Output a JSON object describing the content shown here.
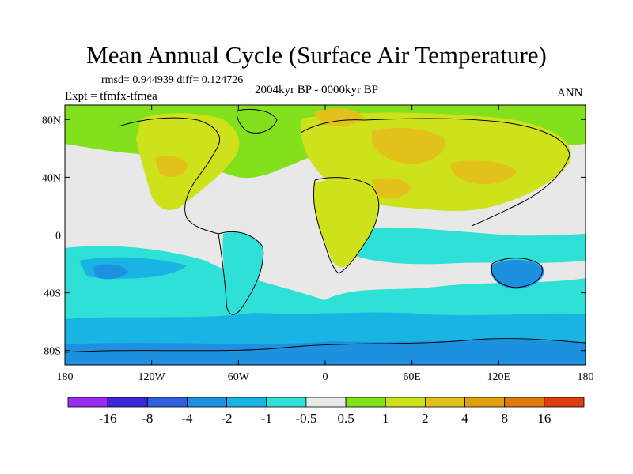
{
  "chart_data": {
    "type": "heatmap",
    "title": "Mean Annual Cycle (Surface Air Temperature)",
    "stats_line": "rmsd= 0.944939  diff= 0.124726",
    "experiment": "Expt = tfmfx-tfmea",
    "period": "2004kyr BP - 0000kyr BP",
    "season": "ANN",
    "xlim": [
      -180,
      180
    ],
    "ylim": [
      -90,
      90
    ],
    "x_ticks": [
      {
        "value": -180,
        "label": "180"
      },
      {
        "value": -120,
        "label": "120W"
      },
      {
        "value": -60,
        "label": "60W"
      },
      {
        "value": 0,
        "label": "0"
      },
      {
        "value": 60,
        "label": "60E"
      },
      {
        "value": 120,
        "label": "120E"
      },
      {
        "value": 180,
        "label": "180"
      }
    ],
    "y_ticks": [
      {
        "value": 80,
        "label": "80N"
      },
      {
        "value": 40,
        "label": "40N"
      },
      {
        "value": 0,
        "label": "0"
      },
      {
        "value": -40,
        "label": "40S"
      },
      {
        "value": -80,
        "label": "80S"
      }
    ],
    "colorbar": {
      "colors": [
        "#9b2bf0",
        "#3a28d8",
        "#2f5fe0",
        "#1e90e0",
        "#1ab4e4",
        "#2ee0d6",
        "#e8e8e8",
        "#82e01c",
        "#cde21a",
        "#e2c21a",
        "#e0a010",
        "#e07810",
        "#e03c10"
      ],
      "labels": [
        "-16",
        "-8",
        "-4",
        "-2",
        "-1",
        "-0.5",
        "0.5",
        "1",
        "2",
        "4",
        "8",
        "16"
      ]
    },
    "regions": [
      {
        "name": "ocean-background",
        "level": "-0.5 to 0.5",
        "color": "#e8e8e8"
      },
      {
        "name": "land-warming",
        "level": "1 to 2",
        "color": "#cde21a"
      },
      {
        "name": "north-atlantic-arctic",
        "level": "0.5 to 1",
        "color": "#82e01c"
      },
      {
        "name": "eurasia-africa-maxima",
        "level": "2 to 4",
        "color": "#e2c21a"
      },
      {
        "name": "south-pacific-band",
        "level": "-1 to -0.5",
        "color": "#2ee0d6"
      },
      {
        "name": "southern-ocean-cooling",
        "level": "-2 to -1",
        "color": "#1ab4e4"
      },
      {
        "name": "australia-antarctica-minima",
        "level": "-4 to -2",
        "color": "#1e90e0"
      }
    ]
  }
}
